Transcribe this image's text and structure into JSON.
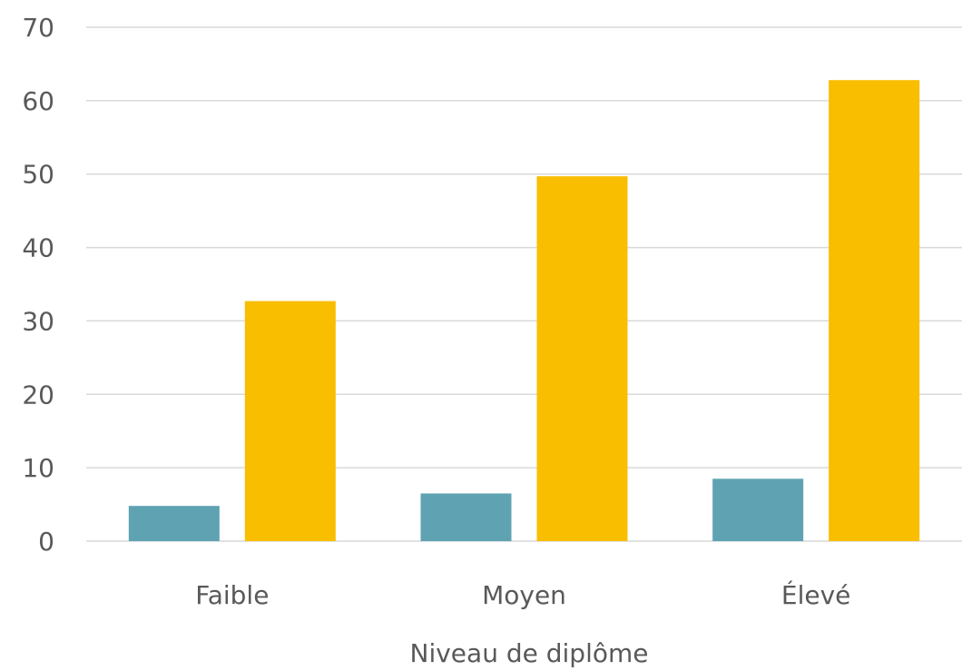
{
  "chart_data": {
    "type": "bar",
    "title": "",
    "xlabel": "Niveau de diplôme",
    "ylabel": "",
    "categories": [
      "Faible",
      "Moyen",
      "Élevé"
    ],
    "series": [
      {
        "values": [
          4.8,
          6.5,
          8.5
        ],
        "color": "#5fa3b3"
      },
      {
        "values": [
          32.7,
          49.7,
          62.8
        ],
        "color": "#f9be00"
      }
    ],
    "ylim": [
      0,
      70
    ],
    "yticks": [
      0,
      10,
      20,
      30,
      40,
      50,
      60,
      70
    ],
    "grid": true,
    "legend": "none"
  }
}
